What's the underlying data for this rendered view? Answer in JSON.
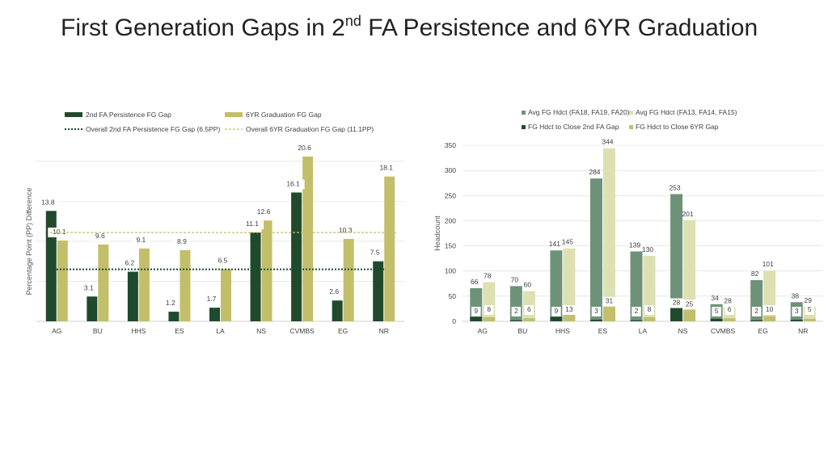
{
  "slide": {
    "title_pre": "First Generation Gaps in 2",
    "title_sup": "nd",
    "title_post": " FA Persistence and 6YR Graduation"
  },
  "colors": {
    "persist": "#1F4A2C",
    "grad": "#C3BE6A",
    "avgRecent": "#6E9279",
    "avgEarlier": "#DDE0B2",
    "close2nd": "#1F4A2C",
    "close6yr": "#C3BE6A",
    "grid": "#D9D9D9",
    "axis": "#595959"
  },
  "chart_data": [
    {
      "type": "bar",
      "title": "",
      "xlabel": "",
      "ylabel": "Percentage Point (PP) Difference",
      "ylim": [
        0,
        22
      ],
      "grid": true,
      "legend_position": "top",
      "categories": [
        "AG",
        "BU",
        "HHS",
        "ES",
        "LA",
        "NS",
        "CVMBS",
        "EG",
        "NR"
      ],
      "series": [
        {
          "name": "2nd FA Persistence FG Gap",
          "values": [
            13.8,
            3.1,
            6.2,
            1.2,
            1.7,
            11.1,
            16.1,
            2.6,
            7.5
          ]
        },
        {
          "name": "6YR Graduation FG Gap",
          "values": [
            10.1,
            9.6,
            9.1,
            8.9,
            6.5,
            12.6,
            20.6,
            10.3,
            18.1
          ]
        }
      ],
      "reference_lines": [
        {
          "name": "Overall 2nd FA Persistence FG Gap  (6.5PP)",
          "value": 6.5
        },
        {
          "name": "Overall 6YR Graduation FG Gap (11.1PP)",
          "value": 11.1
        }
      ]
    },
    {
      "type": "bar",
      "title": "",
      "xlabel": "",
      "ylabel": "Headcount",
      "ylim": [
        0,
        350
      ],
      "yticks": [
        0,
        50,
        100,
        150,
        200,
        250,
        300,
        350
      ],
      "grid": true,
      "legend_position": "top",
      "categories": [
        "AG",
        "BU",
        "HHS",
        "ES",
        "LA",
        "NS",
        "CVMBS",
        "EG",
        "NR"
      ],
      "series": [
        {
          "name": "Avg FG Hdct (FA18, FA19, FA20)",
          "values": [
            66,
            70,
            141,
            284,
            139,
            253,
            34,
            82,
            38
          ]
        },
        {
          "name": "Avg FG Hdct (FA13, FA14, FA15)",
          "values": [
            78,
            60,
            145,
            344,
            130,
            201,
            28,
            101,
            29
          ]
        },
        {
          "name": "FG Hdct to Close 2nd FA Gap",
          "values": [
            9,
            2,
            9,
            3,
            2,
            28,
            5,
            2,
            3
          ]
        },
        {
          "name": "FG Hdct to Close 6YR Gap",
          "values": [
            8,
            6,
            13,
            31,
            8,
            25,
            6,
            10,
            5
          ]
        }
      ]
    }
  ]
}
